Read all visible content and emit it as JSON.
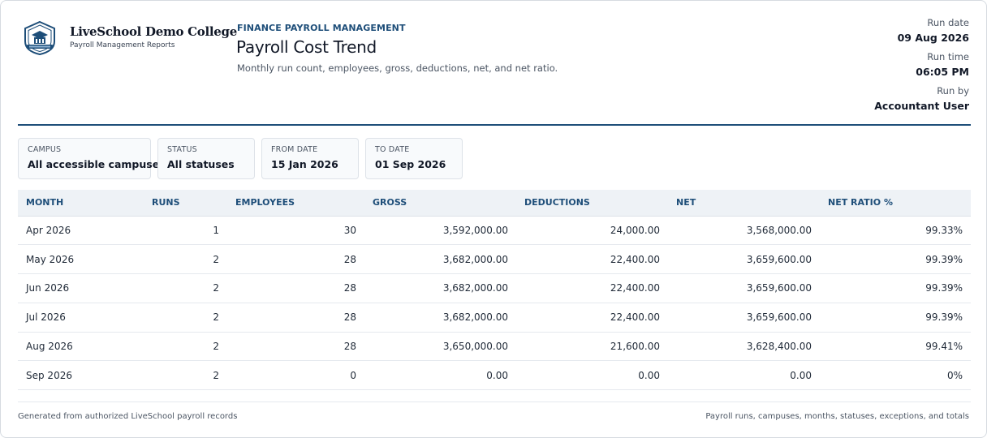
{
  "brand": {
    "college_name": "LiveSchool Demo College",
    "subtitle": "Payroll Management Reports",
    "logo_icon": "college-crest-icon",
    "accent_color": "#1e4e79"
  },
  "report": {
    "kicker": "FINANCE PAYROLL MANAGEMENT",
    "title": "Payroll Cost Trend",
    "description": "Monthly run count, employees, gross, deductions, net, and net ratio."
  },
  "run_meta": [
    {
      "label": "Run date",
      "value": "09 Aug 2026"
    },
    {
      "label": "Run time",
      "value": "06:05 PM"
    },
    {
      "label": "Run by",
      "value": "Accountant User"
    }
  ],
  "filters": [
    {
      "label": "CAMPUS",
      "value": "All accessible campuses"
    },
    {
      "label": "STATUS",
      "value": "All statuses"
    },
    {
      "label": "FROM DATE",
      "value": "15 Jan 2026"
    },
    {
      "label": "TO DATE",
      "value": "01 Sep 2026"
    }
  ],
  "table": {
    "columns": [
      "MONTH",
      "RUNS",
      "EMPLOYEES",
      "GROSS",
      "DEDUCTIONS",
      "NET",
      "NET RATIO %"
    ],
    "rows": [
      [
        "Apr 2026",
        "1",
        "30",
        "3,592,000.00",
        "24,000.00",
        "3,568,000.00",
        "99.33%"
      ],
      [
        "May 2026",
        "2",
        "28",
        "3,682,000.00",
        "22,400.00",
        "3,659,600.00",
        "99.39%"
      ],
      [
        "Jun 2026",
        "2",
        "28",
        "3,682,000.00",
        "22,400.00",
        "3,659,600.00",
        "99.39%"
      ],
      [
        "Jul 2026",
        "2",
        "28",
        "3,682,000.00",
        "22,400.00",
        "3,659,600.00",
        "99.39%"
      ],
      [
        "Aug 2026",
        "2",
        "28",
        "3,650,000.00",
        "21,600.00",
        "3,628,400.00",
        "99.41%"
      ],
      [
        "Sep 2026",
        "2",
        "0",
        "0.00",
        "0.00",
        "0.00",
        "0%"
      ]
    ]
  },
  "footer": {
    "left": "Generated from authorized LiveSchool payroll records",
    "right": "Payroll runs, campuses, months, statuses, exceptions, and totals"
  }
}
